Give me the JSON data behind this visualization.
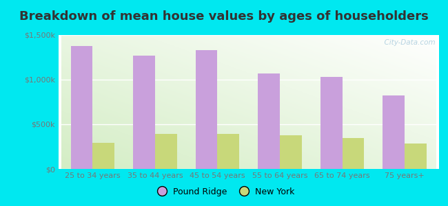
{
  "title": "Breakdown of mean house values by ages of householders",
  "categories": [
    "25 to 34 years",
    "35 to 44 years",
    "45 to 54 years",
    "55 to 64 years",
    "65 to 74 years",
    "75 years+"
  ],
  "pound_ridge": [
    1380000,
    1270000,
    1330000,
    1070000,
    1030000,
    820000
  ],
  "new_york": [
    290000,
    390000,
    395000,
    375000,
    345000,
    285000
  ],
  "pound_ridge_color": "#c9a0dc",
  "new_york_color": "#c8d87a",
  "background_outer": "#00e8f0",
  "ylim": [
    0,
    1500000
  ],
  "yticks": [
    0,
    500000,
    1000000,
    1500000
  ],
  "legend_pound_ridge": "Pound Ridge",
  "legend_new_york": "New York",
  "title_fontsize": 13,
  "bar_width": 0.35,
  "watermark": "  City-Data.com"
}
